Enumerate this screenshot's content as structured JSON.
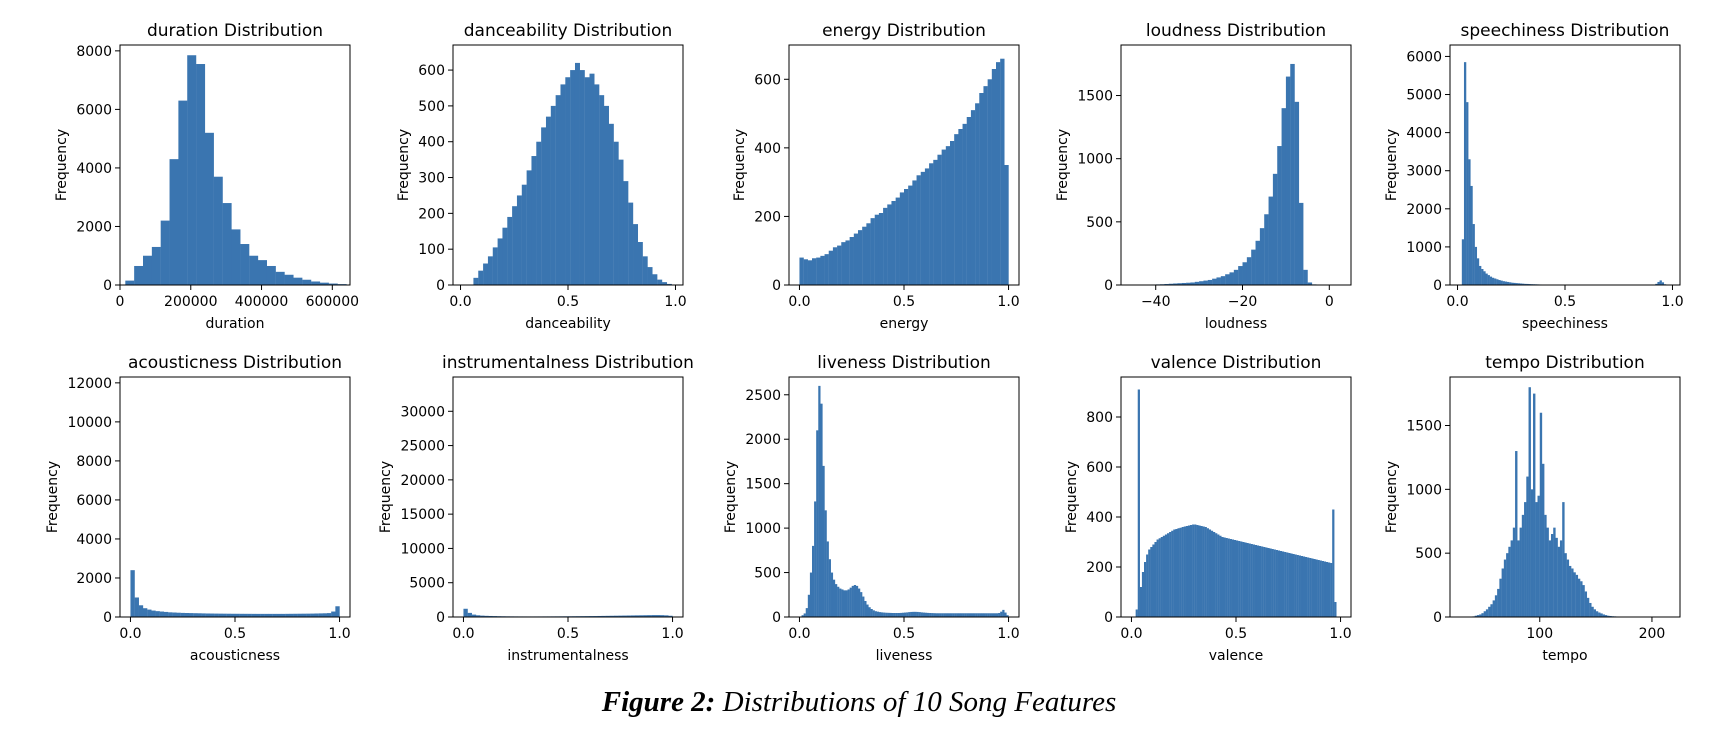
{
  "figure": {
    "caption_label": "Figure 2:",
    "caption_text": " Distributions of 10 Song Features"
  },
  "style": {
    "bar_color": "#3a75b0",
    "axis_color": "#000000"
  },
  "chart_data": [
    {
      "type": "bar",
      "title": "duration Distribution",
      "xlabel": "duration",
      "ylabel": "Frequency",
      "xlim": [
        0,
        650000
      ],
      "ylim": [
        0,
        8200
      ],
      "xticks": [
        0,
        200000,
        400000,
        600000
      ],
      "xticklabels": [
        "0",
        "200000",
        "400000",
        "600000"
      ],
      "yticks": [
        0,
        2000,
        4000,
        6000,
        8000
      ],
      "yticklabels": [
        "0",
        "2000",
        "4000",
        "6000",
        "8000"
      ],
      "bin_start": 15000,
      "bin_width": 25000,
      "values": [
        150,
        650,
        1000,
        1300,
        2200,
        4300,
        6300,
        7850,
        7550,
        5200,
        3700,
        2800,
        1900,
        1400,
        1000,
        850,
        650,
        450,
        350,
        250,
        180,
        120,
        80,
        50,
        30
      ]
    },
    {
      "type": "bar",
      "title": "danceability Distribution",
      "xlabel": "danceability",
      "ylabel": "Frequency",
      "xlim": [
        -0.035,
        1.035
      ],
      "ylim": [
        0,
        670
      ],
      "xticks": [
        0,
        0.5,
        1.0
      ],
      "xticklabels": [
        "0.0",
        "0.5",
        "1.0"
      ],
      "yticks": [
        0,
        100,
        200,
        300,
        400,
        500,
        600
      ],
      "yticklabels": [
        "0",
        "100",
        "200",
        "300",
        "400",
        "500",
        "600"
      ],
      "bin_start": 0.06,
      "bin_width": 0.0225,
      "values": [
        20,
        40,
        60,
        80,
        105,
        130,
        160,
        190,
        220,
        250,
        280,
        320,
        360,
        400,
        440,
        470,
        500,
        530,
        560,
        580,
        600,
        620,
        600,
        580,
        590,
        560,
        530,
        500,
        450,
        400,
        350,
        290,
        230,
        170,
        120,
        80,
        50,
        30,
        15,
        8,
        3,
        1
      ]
    },
    {
      "type": "bar",
      "title": "energy Distribution",
      "xlabel": "energy",
      "ylabel": "Frequency",
      "xlim": [
        -0.05,
        1.05
      ],
      "ylim": [
        0,
        700
      ],
      "xticks": [
        0,
        0.5,
        1.0
      ],
      "xticklabels": [
        "0.0",
        "0.5",
        "1.0"
      ],
      "yticks": [
        0,
        200,
        400,
        600
      ],
      "yticklabels": [
        "0",
        "200",
        "400",
        "600"
      ],
      "bin_start": 0,
      "bin_width": 0.02,
      "values": [
        80,
        75,
        72,
        78,
        80,
        85,
        90,
        100,
        110,
        115,
        125,
        130,
        140,
        150,
        160,
        170,
        180,
        195,
        205,
        210,
        225,
        235,
        245,
        255,
        270,
        280,
        290,
        305,
        320,
        330,
        340,
        355,
        365,
        380,
        395,
        405,
        420,
        440,
        455,
        470,
        490,
        510,
        530,
        560,
        580,
        600,
        630,
        650,
        660,
        350
      ]
    },
    {
      "type": "bar",
      "title": "loudness Distribution",
      "xlabel": "loudness",
      "ylabel": "Frequency",
      "xlim": [
        -48,
        5
      ],
      "ylim": [
        0,
        1900
      ],
      "xticks": [
        -40,
        -20,
        0
      ],
      "xticklabels": [
        "−40",
        "−20",
        "0"
      ],
      "yticks": [
        0,
        500,
        1000,
        1500
      ],
      "yticklabels": [
        "0",
        "500",
        "1000",
        "1500"
      ],
      "bin_start": -44,
      "bin_width": 1,
      "values": [
        2,
        2,
        3,
        4,
        5,
        6,
        8,
        10,
        12,
        14,
        16,
        18,
        20,
        25,
        30,
        35,
        40,
        50,
        60,
        70,
        85,
        100,
        120,
        150,
        180,
        220,
        280,
        350,
        450,
        560,
        700,
        880,
        1100,
        1400,
        1650,
        1750,
        1450,
        650,
        120,
        20,
        5,
        2,
        1,
        1
      ]
    },
    {
      "type": "bar",
      "title": "speechiness Distribution",
      "xlabel": "speechiness",
      "ylabel": "Frequency",
      "xlim": [
        -0.035,
        1.035
      ],
      "ylim": [
        0,
        6300
      ],
      "xticks": [
        0,
        0.5,
        1.0
      ],
      "xticklabels": [
        "0.0",
        "0.5",
        "1.0"
      ],
      "yticks": [
        0,
        1000,
        2000,
        3000,
        4000,
        5000,
        6000
      ],
      "yticklabels": [
        "0",
        "1000",
        "2000",
        "3000",
        "4000",
        "5000",
        "6000"
      ],
      "bin_start": 0.02,
      "bin_width": 0.01,
      "values": [
        1200,
        5850,
        4800,
        3300,
        2600,
        1600,
        1000,
        700,
        500,
        420,
        360,
        300,
        260,
        220,
        190,
        170,
        150,
        130,
        115,
        100,
        90,
        80,
        70,
        60,
        55,
        50,
        45,
        40,
        35,
        30,
        28,
        25,
        22,
        20,
        18,
        16,
        14,
        12,
        10,
        9,
        8,
        7,
        6,
        5,
        5,
        4,
        4,
        3,
        3,
        3,
        2,
        2,
        2,
        2,
        2,
        2,
        2,
        2,
        2,
        2,
        2,
        2,
        2,
        2,
        2,
        2,
        2,
        2,
        2,
        2,
        2,
        2,
        2,
        2,
        2,
        2,
        2,
        2,
        2,
        2,
        2,
        2,
        2,
        2,
        2,
        2,
        2,
        3,
        5,
        10,
        30,
        80,
        120,
        70,
        20,
        5
      ]
    },
    {
      "type": "bar",
      "title": "acousticness Distribution",
      "xlabel": "acousticness",
      "ylabel": "Frequency",
      "xlim": [
        -0.05,
        1.05
      ],
      "ylim": [
        0,
        12300
      ],
      "xticks": [
        0,
        0.5,
        1.0
      ],
      "xticklabels": [
        "0.0",
        "0.5",
        "1.0"
      ],
      "yticks": [
        0,
        2000,
        4000,
        6000,
        8000,
        10000,
        12000
      ],
      "yticklabels": [
        "0",
        "2000",
        "4000",
        "6000",
        "8000",
        "10000",
        "12000"
      ],
      "bin_start": 0,
      "bin_width": 0.02,
      "values": [
        2400,
        1000,
        600,
        450,
        380,
        330,
        300,
        280,
        260,
        240,
        230,
        220,
        210,
        205,
        200,
        195,
        190,
        185,
        180,
        178,
        175,
        172,
        170,
        168,
        166,
        165,
        164,
        163,
        162,
        161,
        160,
        160,
        160,
        160,
        160,
        160,
        160,
        162,
        164,
        166,
        168,
        170,
        172,
        175,
        180,
        185,
        190,
        200,
        280,
        550
      ]
    },
    {
      "type": "bar",
      "title": "instrumentalness Distribution",
      "xlabel": "instrumentalness",
      "ylabel": "Frequency",
      "xlim": [
        -0.05,
        1.05
      ],
      "ylim": [
        0,
        35000
      ],
      "xticks": [
        0,
        0.5,
        1.0
      ],
      "xticklabels": [
        "0.0",
        "0.5",
        "1.0"
      ],
      "yticks": [
        0,
        5000,
        10000,
        15000,
        20000,
        25000,
        30000
      ],
      "yticklabels": [
        "0",
        "5000",
        "10000",
        "15000",
        "20000",
        "25000",
        "30000"
      ],
      "bin_start": 0,
      "bin_width": 0.02,
      "values": [
        1200,
        600,
        350,
        250,
        200,
        170,
        150,
        135,
        120,
        110,
        100,
        95,
        90,
        88,
        86,
        85,
        85,
        86,
        88,
        90,
        92,
        95,
        98,
        100,
        105,
        110,
        115,
        120,
        125,
        130,
        135,
        140,
        150,
        160,
        170,
        180,
        190,
        200,
        210,
        220,
        230,
        240,
        250,
        260,
        270,
        280,
        280,
        270,
        240,
        180
      ]
    },
    {
      "type": "bar",
      "title": "liveness Distribution",
      "xlabel": "liveness",
      "ylabel": "Frequency",
      "xlim": [
        -0.05,
        1.05
      ],
      "ylim": [
        0,
        2700
      ],
      "xticks": [
        0,
        0.5,
        1.0
      ],
      "xticklabels": [
        "0.0",
        "0.5",
        "1.0"
      ],
      "yticks": [
        0,
        500,
        1000,
        1500,
        2000,
        2500
      ],
      "yticklabels": [
        "0",
        "500",
        "1000",
        "1500",
        "2000",
        "2500"
      ],
      "bin_start": 0.01,
      "bin_width": 0.01,
      "values": [
        20,
        40,
        100,
        250,
        500,
        800,
        1300,
        2100,
        2600,
        2400,
        1700,
        1200,
        850,
        650,
        500,
        420,
        370,
        340,
        320,
        310,
        300,
        300,
        310,
        330,
        350,
        360,
        350,
        320,
        280,
        230,
        180,
        140,
        110,
        90,
        75,
        65,
        60,
        55,
        52,
        50,
        48,
        47,
        46,
        45,
        45,
        45,
        45,
        46,
        48,
        50,
        52,
        55,
        57,
        58,
        58,
        57,
        55,
        52,
        50,
        48,
        46,
        45,
        44,
        43,
        42,
        42,
        42,
        42,
        42,
        42,
        42,
        42,
        42,
        42,
        42,
        42,
        42,
        42,
        42,
        42,
        42,
        42,
        42,
        42,
        42,
        42,
        42,
        42,
        42,
        42,
        42,
        42,
        42,
        42,
        45,
        60,
        80,
        50,
        20
      ]
    },
    {
      "type": "bar",
      "title": "valence Distribution",
      "xlabel": "valence",
      "ylabel": "Frequency",
      "xlim": [
        -0.05,
        1.05
      ],
      "ylim": [
        0,
        960
      ],
      "xticks": [
        0,
        0.5,
        1.0
      ],
      "xticklabels": [
        "0.0",
        "0.5",
        "1.0"
      ],
      "yticks": [
        0,
        200,
        400,
        600,
        800
      ],
      "yticklabels": [
        "0",
        "200",
        "400",
        "600",
        "800"
      ],
      "bin_start": 0.02,
      "bin_width": 0.01,
      "values": [
        30,
        910,
        120,
        180,
        220,
        250,
        270,
        280,
        290,
        300,
        310,
        315,
        320,
        325,
        330,
        335,
        340,
        345,
        350,
        352,
        355,
        357,
        360,
        362,
        364,
        366,
        368,
        370,
        370,
        368,
        366,
        364,
        362,
        360,
        355,
        350,
        345,
        340,
        335,
        330,
        325,
        320,
        318,
        316,
        314,
        312,
        310,
        308,
        306,
        304,
        302,
        300,
        298,
        296,
        294,
        292,
        290,
        288,
        286,
        284,
        282,
        280,
        278,
        276,
        274,
        272,
        270,
        268,
        266,
        264,
        262,
        260,
        258,
        256,
        254,
        252,
        250,
        248,
        246,
        244,
        242,
        240,
        238,
        236,
        234,
        232,
        230,
        228,
        226,
        224,
        222,
        220,
        218,
        216,
        430,
        60
      ]
    },
    {
      "type": "bar",
      "title": "tempo Distribution",
      "xlabel": "tempo",
      "ylabel": "Frequency",
      "xlim": [
        20,
        225
      ],
      "ylim": [
        0,
        1880
      ],
      "xticks": [
        100,
        200
      ],
      "xticklabels": [
        "100",
        "200"
      ],
      "yticks": [
        0,
        500,
        1000,
        1500
      ],
      "yticklabels": [
        "0",
        "500",
        "1000",
        "1500"
      ],
      "bin_start": 40,
      "bin_width": 2,
      "values": [
        5,
        10,
        15,
        20,
        30,
        45,
        60,
        80,
        100,
        130,
        170,
        220,
        300,
        380,
        450,
        500,
        550,
        600,
        700,
        1300,
        600,
        700,
        800,
        900,
        1100,
        1800,
        1000,
        1750,
        900,
        950,
        1600,
        1200,
        800,
        700,
        600,
        650,
        700,
        620,
        550,
        600,
        900,
        500,
        450,
        400,
        380,
        350,
        330,
        300,
        280,
        250,
        200,
        150,
        110,
        80,
        60,
        45,
        35,
        28,
        20,
        15,
        10,
        8,
        6,
        5,
        4,
        3,
        2,
        2,
        1,
        1,
        1,
        1,
        1,
        1,
        1,
        1,
        1,
        1,
        1,
        1,
        1,
        1,
        1,
        1,
        1,
        1,
        1,
        1,
        1,
        1,
        1
      ]
    }
  ]
}
